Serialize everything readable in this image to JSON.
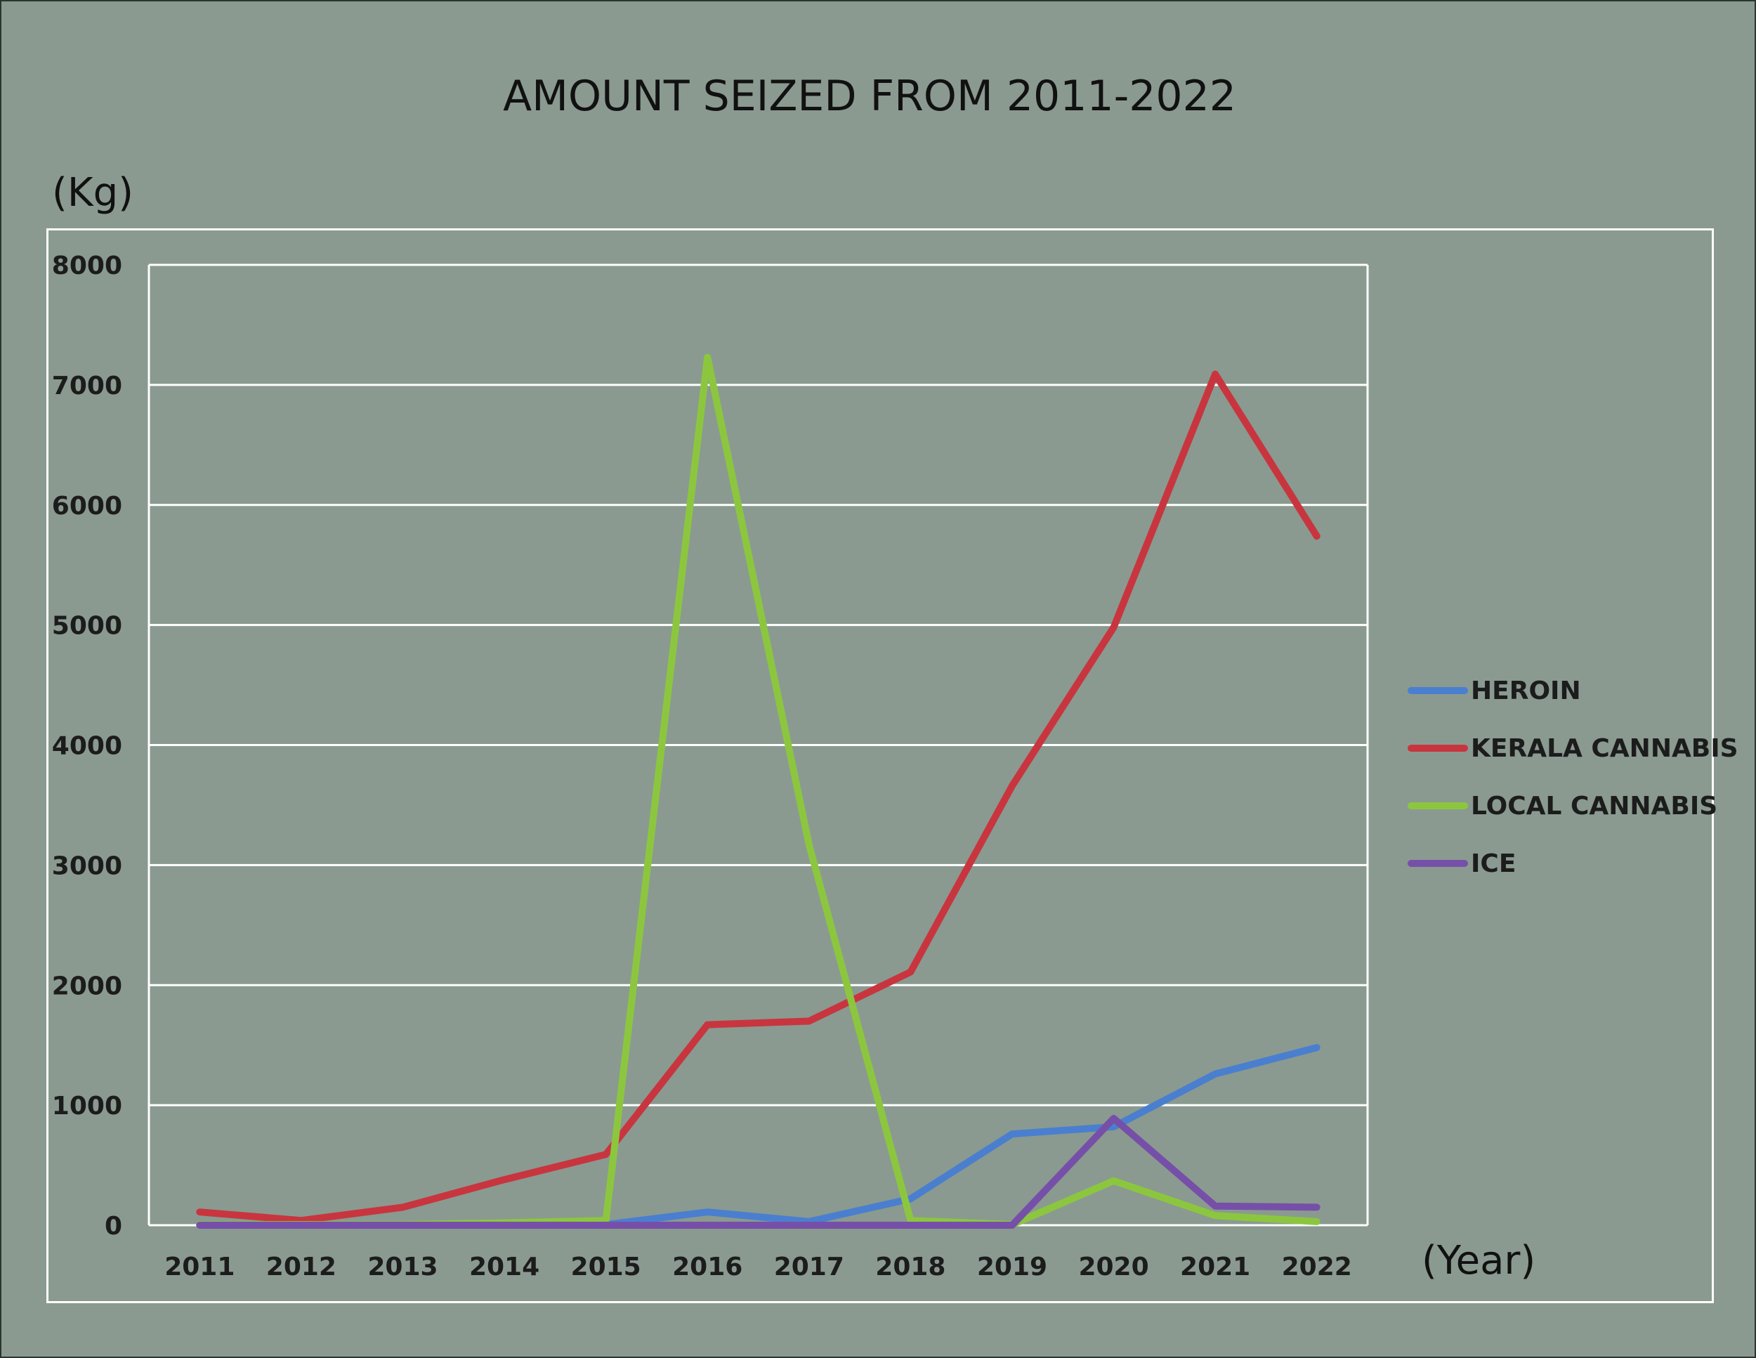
{
  "chart_data": {
    "type": "line",
    "title": "AMOUNT SEIZED FROM 2011-2022",
    "ylabel": "(Kg)",
    "xlabel": "(Year)",
    "categories": [
      "2011",
      "2012",
      "2013",
      "2014",
      "2015",
      "2016",
      "2017",
      "2018",
      "2019",
      "2020",
      "2021",
      "2022"
    ],
    "ylim": [
      0,
      8000
    ],
    "yticks": [
      "0",
      "1000",
      "2000",
      "3000",
      "4000",
      "5000",
      "6000",
      "7000",
      "8000"
    ],
    "grid": true,
    "legend_position": "right",
    "series": [
      {
        "name": "HEROIN",
        "color": "#4a7fcf",
        "values": [
          5,
          5,
          5,
          5,
          5,
          110,
          30,
          220,
          760,
          820,
          1260,
          1480
        ]
      },
      {
        "name": "KERALA CANNABIS",
        "color": "#c8353f",
        "values": [
          110,
          40,
          150,
          380,
          590,
          1670,
          1700,
          2110,
          3660,
          4980,
          7090,
          5740
        ]
      },
      {
        "name": "LOCAL CANNABIS",
        "color": "#8cc63f",
        "values": [
          5,
          5,
          5,
          20,
          40,
          7230,
          3170,
          40,
          5,
          370,
          80,
          30
        ]
      },
      {
        "name": "ICE",
        "color": "#7650a8",
        "values": [
          0,
          0,
          0,
          0,
          0,
          0,
          0,
          0,
          0,
          890,
          160,
          150
        ]
      }
    ]
  }
}
